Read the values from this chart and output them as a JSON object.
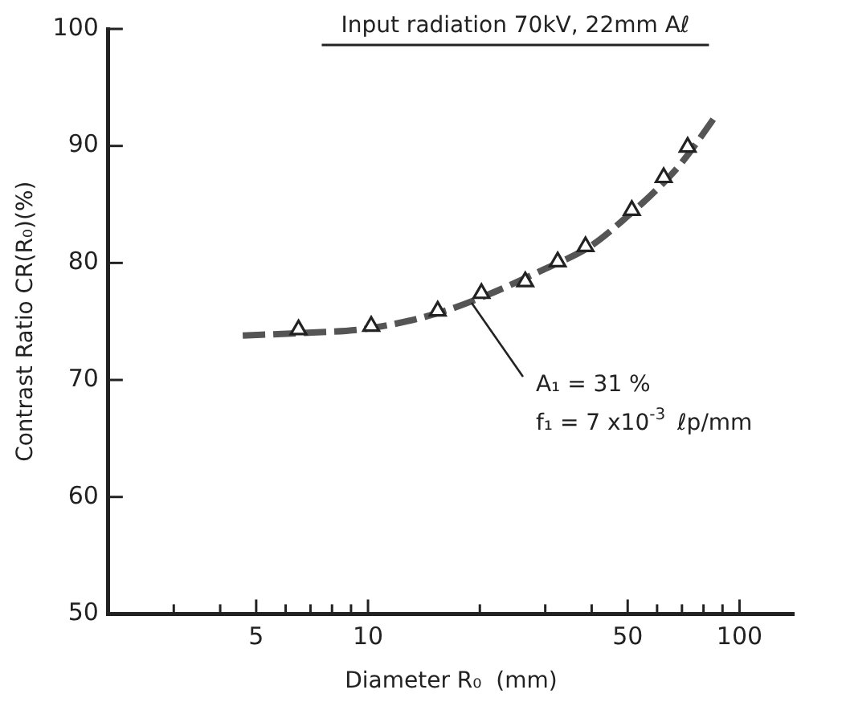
{
  "chart_data": {
    "type": "line",
    "title": "Input radiation 70kV, 22mm Aℓ",
    "xlabel": "Diameter R₀  (mm)",
    "ylabel": "Contrast Ratio CR(R₀)(%)",
    "log": "x",
    "xlim": [
      2,
      140
    ],
    "xticks": [
      {
        "value": 3,
        "label": null
      },
      {
        "value": 4,
        "label": null
      },
      5,
      {
        "value": 6,
        "label": null
      },
      {
        "value": 7,
        "label": null
      },
      {
        "value": 8,
        "label": null
      },
      {
        "value": 9,
        "label": null
      },
      10,
      {
        "value": 20,
        "label": null
      },
      {
        "value": 30,
        "label": null
      },
      {
        "value": 40,
        "label": null
      },
      50,
      {
        "value": 60,
        "label": null
      },
      {
        "value": 70,
        "label": null
      },
      {
        "value": 80,
        "label": null
      },
      {
        "value": 90,
        "label": null
      },
      100
    ],
    "ylim": [
      50,
      100
    ],
    "yticks": [
      50,
      60,
      70,
      80,
      90,
      100
    ],
    "grid": false,
    "legend": false,
    "series": [
      {
        "type": "line",
        "color": "#555555",
        "marker": "none",
        "line_style": "dashed",
        "x": [
          4.6,
          6.5,
          10,
          15,
          20,
          30,
          40,
          50,
          60,
          70,
          86.9
        ],
        "values": [
          73.8,
          74.0,
          74.4,
          75.6,
          77.0,
          79.5,
          81.5,
          84.0,
          86.3,
          88.6,
          92.7
        ]
      },
      {
        "type": "scatter",
        "color": "#222222",
        "marker": "triangle",
        "x": [
          6.5,
          10.2,
          15.4,
          20.2,
          26.5,
          32.4,
          38.5,
          51.3,
          62.5,
          72.5
        ],
        "values": [
          74.3,
          74.6,
          75.9,
          77.4,
          78.4,
          80.1,
          81.4,
          84.5,
          87.3,
          89.9
        ]
      }
    ],
    "annotations": [
      {
        "text": "A₁ = 31 %\nf₁ = 7 x10$^{-3}$ ℓp/mm",
        "x": 19,
        "y": 76.6
      }
    ]
  }
}
